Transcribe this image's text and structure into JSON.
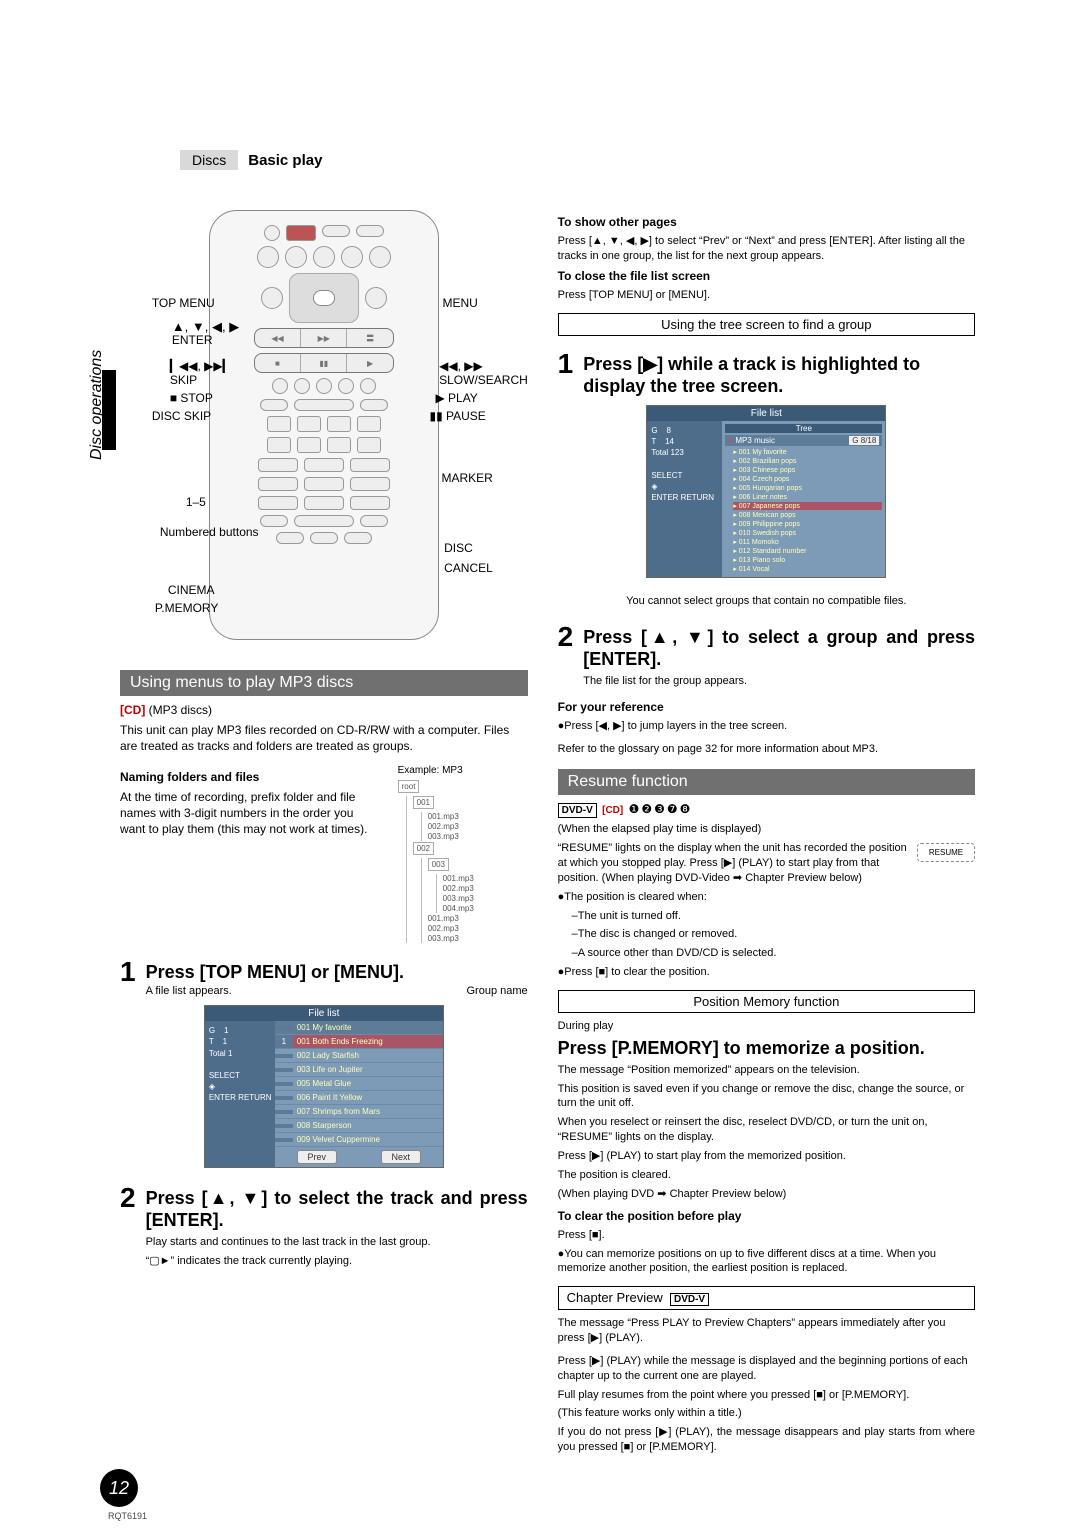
{
  "header": {
    "tag": "Discs",
    "title": "Basic play"
  },
  "sidebar": {
    "label": "Disc operations"
  },
  "remote_labels": {
    "top_menu": "TOP MENU",
    "menu": "MENU",
    "cursors": "▲, ▼, ◀, ▶",
    "enter": "ENTER",
    "skip_sym": "▎◀◀, ▶▶▎",
    "skip": "SKIP",
    "slow_sym": "◀◀, ▶▶",
    "slow": "SLOW/SEARCH",
    "stop": "■ STOP",
    "play": "▶ PLAY",
    "disc_skip": "DISC SKIP",
    "pause": "▮▮ PAUSE",
    "marker": "MARKER",
    "num": "1–5",
    "numbered": "Numbered buttons",
    "disc": "DISC",
    "cancel": "CANCEL",
    "cinema": "CINEMA",
    "pmemory": "P.MEMORY"
  },
  "mp3": {
    "section_title": "Using menus to play MP3 discs",
    "tag": "[CD]",
    "tag_note": "(MP3 discs)",
    "desc": "This unit can play MP3 files recorded on CD-R/RW with a computer. Files are treated as tracks and folders are treated as groups.",
    "naming_title": "Naming folders and files",
    "example_label": "Example: MP3",
    "naming_body": "At the time of recording, prefix folder and file names with 3-digit numbers in the order you want to play them (this may not work at times).",
    "tree_root": "root",
    "tree": {
      "f001": "001",
      "f002": "002",
      "f003": "003",
      "files_a": [
        "001.mp3",
        "002.mp3",
        "003.mp3"
      ],
      "files_b": [
        "001.mp3",
        "002.mp3",
        "003.mp3",
        "004.mp3"
      ],
      "files_c": [
        "001.mp3",
        "002.mp3",
        "003.mp3"
      ]
    },
    "step1": "Press [TOP MENU] or [MENU].",
    "step1_sub": "A file list appears.",
    "group_name": "Group name",
    "filelist": {
      "title": "File list",
      "g": "G",
      "g_val": "1",
      "t": "T",
      "t_val": "1",
      "total": "Total",
      "total_val": "1",
      "select": "SELECT",
      "enter": "ENTER",
      "return": "RETURN",
      "group_header": "001 My favorite",
      "rows": [
        {
          "n": "1",
          "name": "001 Both Ends Freezing",
          "hl": true
        },
        {
          "n": "",
          "name": "002 Lady Starfish"
        },
        {
          "n": "",
          "name": "003 Life on Jupiter"
        },
        {
          "n": "",
          "name": "005 Metal Glue"
        },
        {
          "n": "",
          "name": "006 Paint It Yellow"
        },
        {
          "n": "",
          "name": "007 Shrimps from Mars"
        },
        {
          "n": "",
          "name": "008 Starperson"
        },
        {
          "n": "",
          "name": "009 Velvet Cuppermine"
        }
      ],
      "prev": "Prev",
      "next": "Next"
    },
    "step2": "Press [▲, ▼] to select the track and press [ENTER].",
    "step2_body1": "Play starts and continues to the last track in the last group.",
    "step2_body2": "“▢►” indicates the track currently playing."
  },
  "right": {
    "show_pages": "To show other pages",
    "show_pages_body": "Press [▲, ▼, ◀, ▶] to select “Prev” or “Next” and press [ENTER]. After listing all the tracks in one group, the list for the next group appears.",
    "close_title": "To close the file list screen",
    "close_body": "Press [TOP MENU] or [MENU].",
    "tree_heading": "Using the tree screen to find a group",
    "step1": "Press [▶] while a track is highlighted to display the tree screen.",
    "tree_ui": {
      "title": "File list",
      "sub": "Tree",
      "g": "G",
      "g_v": "8",
      "t": "T",
      "t_v": "14",
      "total": "Total",
      "total_v": "123",
      "select": "SELECT",
      "enter": "ENTER",
      "return": "RETURN",
      "group": "MP3 music",
      "badge": "G   8/18",
      "items": [
        "001 My favorite",
        "002 Brazilian pops",
        "003 Chinese pops",
        "004 Czech pops",
        "005 Hungarian pops",
        "006 Liner notes",
        "007 Japanese pops",
        "008 Mexican pops",
        "009 Philippine pops",
        "010 Swedish pops",
        "011 Momoko",
        "012 Standard number",
        "013 Piano solo",
        "014 Vocal"
      ],
      "hl_index": 6
    },
    "tree_note": "You cannot select groups that contain no compatible files.",
    "step2": "Press [▲, ▼] to select a group and press [ENTER].",
    "step2_sub": "The file list for the group appears.",
    "ref_title": "For your reference",
    "ref_body": "●Press [◀, ▶] to jump layers in the tree screen.",
    "glossary": "Refer to the glossary on page 32 for more information about MP3.",
    "resume_bar": "Resume function",
    "resume_tags": {
      "dvd": "DVD-V",
      "cd": "[CD]",
      "nums": "❶❷❸❼❽"
    },
    "resume_when": "(When the elapsed play time is displayed)",
    "resume_body": "“RESUME” lights on the display when the unit has recorded the position at which you stopped play. Press [▶] (PLAY) to start play from that position. (When playing DVD-Video ➡ Chapter Preview below)",
    "resume_badge": "RESUME",
    "clear_title": "●The position is cleared when:",
    "clear_items": [
      "–The unit is turned off.",
      "–The disc is changed or removed.",
      "–A source other than DVD/CD is selected."
    ],
    "clear_stop": "●Press [■] to clear the position.",
    "pos_mem_heading": "Position Memory function",
    "during": "During play",
    "pmem_title": "Press [P.MEMORY] to memorize a position.",
    "pmem_b1": "The message “Position memorized” appears on the television.",
    "pmem_b2": "This position is saved even if you change or remove the disc, change the source, or turn the unit off.",
    "pmem_b3": "When you reselect or reinsert the disc, reselect DVD/CD, or turn the unit on, “RESUME” lights on the display.",
    "pmem_b4": "Press [▶] (PLAY) to start play from the memorized position.",
    "pmem_b5": "The position is cleared.",
    "pmem_b6": "(When playing DVD ➡ Chapter Preview below)",
    "pmem_clear_t": "To clear the position before play",
    "pmem_clear_b": "Press [■].",
    "pmem_note": "●You can memorize positions on up to five different discs at a time. When you memorize another position, the earliest position is replaced.",
    "chap_heading": "Chapter Preview",
    "chap_tag": "DVD-V",
    "chap_b1": "The message “Press PLAY to Preview Chapters” appears immediately after you press [▶] (PLAY).",
    "chap_b2": "Press [▶] (PLAY) while the message is displayed and the beginning portions of each chapter up to the current one are played.",
    "chap_b3": "Full play resumes from the point where you pressed [■] or [P.MEMORY].",
    "chap_b4": "(This feature works only within a title.)",
    "chap_b5": "If you do not press [▶] (PLAY), the message disappears and play starts from where you pressed [■] or [P.MEMORY]."
  },
  "footer": {
    "page": "12",
    "doc_id": "RQT6191"
  }
}
